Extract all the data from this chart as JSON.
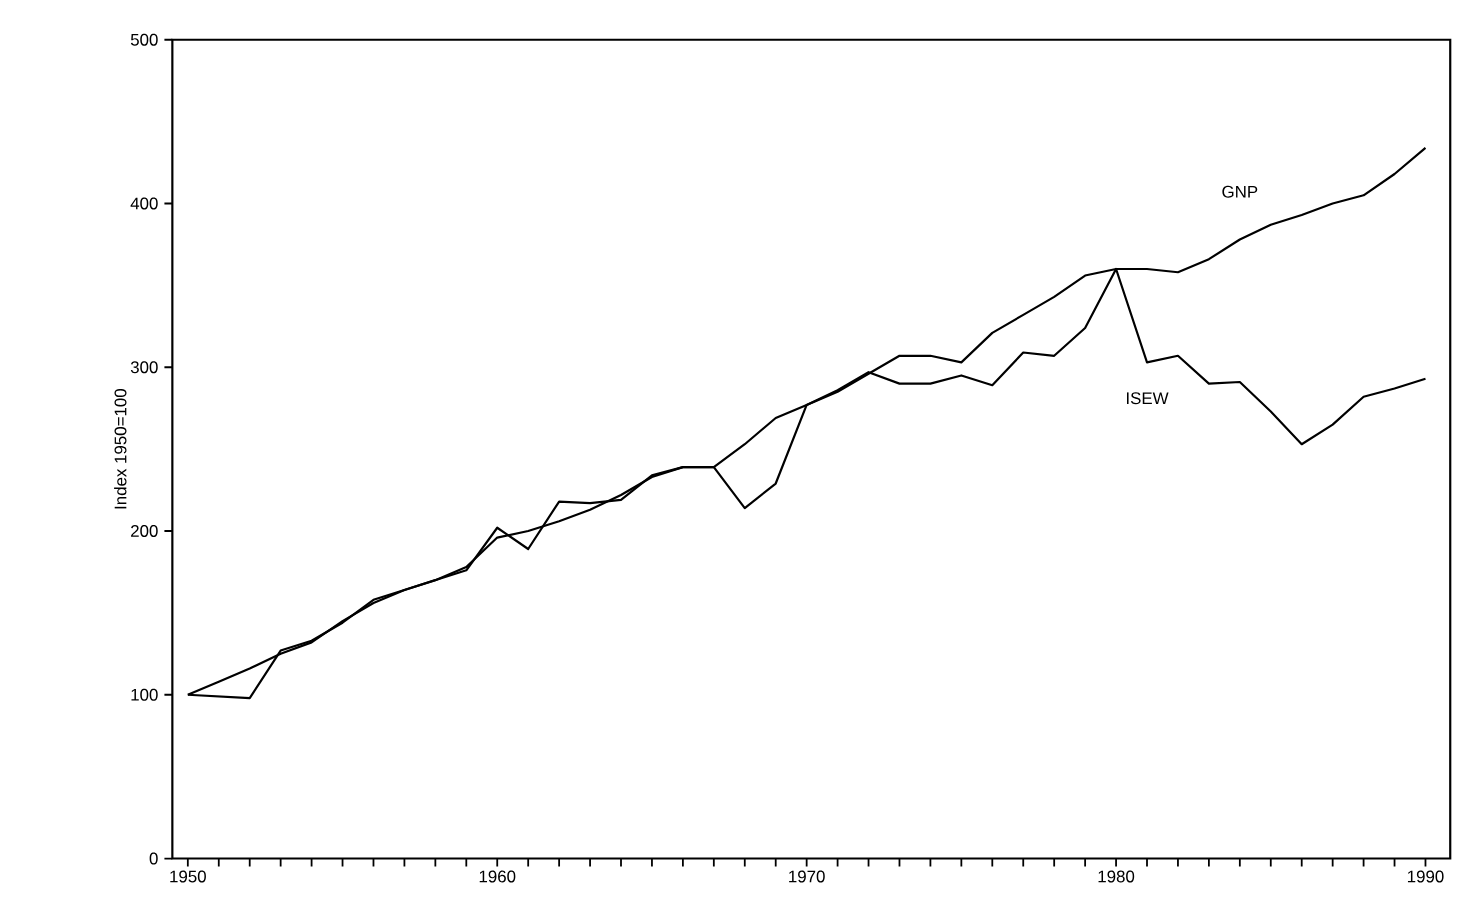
{
  "chart_data": {
    "type": "line",
    "ylabel": "Index 1950=100",
    "x": [
      1950,
      1951,
      1952,
      1953,
      1954,
      1955,
      1956,
      1957,
      1958,
      1959,
      1960,
      1961,
      1962,
      1963,
      1964,
      1965,
      1966,
      1967,
      1968,
      1969,
      1970,
      1971,
      1972,
      1973,
      1974,
      1975,
      1976,
      1977,
      1978,
      1979,
      1980,
      1981,
      1982,
      1983,
      1984,
      1985,
      1986,
      1987,
      1988,
      1989,
      1990
    ],
    "series": [
      {
        "name": "GNP",
        "color": "#000000",
        "values": [
          100,
          108,
          116,
          125,
          132,
          145,
          156,
          164,
          170,
          178,
          196,
          200,
          206,
          213,
          222,
          233,
          239,
          239,
          253,
          269,
          277,
          285,
          296,
          307,
          307,
          303,
          321,
          332,
          343,
          356,
          360,
          360,
          358,
          366,
          378,
          387,
          393,
          400,
          405,
          418,
          434
        ]
      },
      {
        "name": "ISEW",
        "color": "#000000",
        "values": [
          100,
          99,
          98,
          127,
          133,
          144,
          158,
          164,
          170,
          176,
          202,
          189,
          218,
          217,
          219,
          234,
          239,
          239,
          214,
          229,
          277,
          286,
          297,
          290,
          290,
          295,
          289,
          309,
          307,
          324,
          360,
          303,
          307,
          290,
          291,
          273,
          253,
          265,
          282,
          287,
          293
        ]
      }
    ],
    "xlim": [
      1949.5,
      1990.8
    ],
    "ylim": [
      0,
      500
    ],
    "xticks": [
      1950,
      {
        "value": 1951,
        "label": null
      },
      {
        "value": 1952,
        "label": null
      },
      {
        "value": 1953,
        "label": null
      },
      {
        "value": 1954,
        "label": null
      },
      {
        "value": 1955,
        "label": null
      },
      {
        "value": 1956,
        "label": null
      },
      {
        "value": 1957,
        "label": null
      },
      {
        "value": 1958,
        "label": null
      },
      {
        "value": 1959,
        "label": null
      },
      1960,
      {
        "value": 1961,
        "label": null
      },
      {
        "value": 1962,
        "label": null
      },
      {
        "value": 1963,
        "label": null
      },
      {
        "value": 1964,
        "label": null
      },
      {
        "value": 1965,
        "label": null
      },
      {
        "value": 1966,
        "label": null
      },
      {
        "value": 1967,
        "label": null
      },
      {
        "value": 1968,
        "label": null
      },
      {
        "value": 1969,
        "label": null
      },
      1970,
      {
        "value": 1971,
        "label": null
      },
      {
        "value": 1972,
        "label": null
      },
      {
        "value": 1973,
        "label": null
      },
      {
        "value": 1974,
        "label": null
      },
      {
        "value": 1975,
        "label": null
      },
      {
        "value": 1976,
        "label": null
      },
      {
        "value": 1977,
        "label": null
      },
      {
        "value": 1978,
        "label": null
      },
      {
        "value": 1979,
        "label": null
      },
      1980,
      {
        "value": 1981,
        "label": null
      },
      {
        "value": 1982,
        "label": null
      },
      {
        "value": 1983,
        "label": null
      },
      {
        "value": 1984,
        "label": null
      },
      {
        "value": 1985,
        "label": null
      },
      {
        "value": 1986,
        "label": null
      },
      {
        "value": 1987,
        "label": null
      },
      {
        "value": 1988,
        "label": null
      },
      {
        "value": 1989,
        "label": null
      },
      1990
    ],
    "yticks": [
      0,
      100,
      200,
      300,
      400,
      500
    ],
    "grid": false,
    "legend": false,
    "marker": "none",
    "line_style": "solid"
  }
}
